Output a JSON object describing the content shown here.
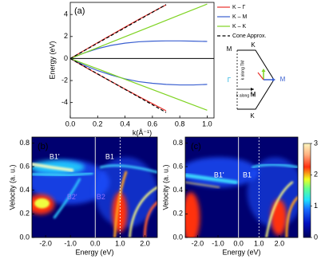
{
  "chart_data": [
    {
      "type": "line",
      "panel": "(a)",
      "x_label": "k(Å⁻¹)",
      "y_label": "Energy (eV)",
      "xlim": [
        0,
        1.05
      ],
      "ylim": [
        -5.4,
        5.1
      ],
      "xticks": [
        {
          "value": 0,
          "label": "0.0"
        },
        {
          "value": 0.2,
          "label": "0.2"
        },
        {
          "value": 0.4,
          "label": "0.4"
        },
        {
          "value": 0.6,
          "label": "0.6"
        },
        {
          "value": 0.8,
          "label": "0.8"
        },
        {
          "value": 1,
          "label": "1.0"
        }
      ],
      "yticks": [
        -4,
        -2,
        0,
        2,
        4
      ],
      "series": [
        {
          "name": "K – Γ",
          "color": "#e8302a",
          "dash": false,
          "x": [
            0,
            0.1,
            0.2,
            0.3,
            0.4,
            0.5,
            0.6,
            0.7
          ],
          "upper": [
            0,
            0.72,
            1.44,
            2.15,
            2.85,
            3.55,
            4.22,
            4.88
          ],
          "lower": [
            0,
            -0.72,
            -1.42,
            -2.1,
            -2.78,
            -3.45,
            -4.1,
            -4.75
          ]
        },
        {
          "name": "K – M",
          "color": "#3a5fd0",
          "dash": false,
          "x": [
            0,
            0.1,
            0.2,
            0.3,
            0.4,
            0.5,
            0.6,
            0.7,
            0.8,
            0.9,
            1
          ],
          "upper": [
            0,
            0.5,
            0.9,
            1.2,
            1.4,
            1.52,
            1.58,
            1.6,
            1.6,
            1.58,
            1.55
          ],
          "lower": [
            0,
            -0.6,
            -1.1,
            -1.5,
            -1.85,
            -2.1,
            -2.25,
            -2.35,
            -2.4,
            -2.4,
            -2.35
          ]
        },
        {
          "name": "K – K",
          "color": "#7ed321",
          "dash": false,
          "x": [
            0,
            0.2,
            0.4,
            0.6,
            0.8,
            1
          ],
          "upper": [
            0,
            0.99,
            1.98,
            2.97,
            3.96,
            4.95
          ],
          "lower": [
            0,
            -0.94,
            -1.88,
            -2.82,
            -3.76,
            -4.7
          ]
        },
        {
          "name": "Cone Approx.",
          "color": "#000000",
          "dash": true,
          "x": [
            0,
            0.7
          ],
          "upper": [
            0,
            4.9
          ],
          "lower": [
            0,
            -4.9
          ]
        }
      ],
      "diagram_labels": [
        "M",
        "K",
        "Γ",
        "M",
        "M",
        "K",
        "k along TM",
        "k along TK"
      ]
    },
    {
      "type": "heatmap",
      "panel": "(b)",
      "x_label": "Energy (eV)",
      "y_label": "Velocity (a. u.)",
      "xlim": [
        -2.55,
        2.5
      ],
      "ylim": [
        0,
        0.85
      ],
      "xticks": [
        {
          "value": -2,
          "label": "-2.0"
        },
        {
          "value": -1,
          "label": "-1.0"
        },
        {
          "value": 0,
          "label": "0.0"
        },
        {
          "value": 1,
          "label": "1.0"
        },
        {
          "value": 2,
          "label": "2.0"
        }
      ],
      "yticks": [
        {
          "value": 0,
          "label": "0.0"
        },
        {
          "value": 0.2,
          "label": "0.2"
        },
        {
          "value": 0.4,
          "label": "0.4"
        },
        {
          "value": 0.6,
          "label": "0.6"
        },
        {
          "value": 0.8,
          "label": "0.8"
        }
      ],
      "annotations": [
        "B1'",
        "B1",
        "B2'",
        "B2"
      ]
    },
    {
      "type": "heatmap",
      "panel": "(c)",
      "x_label": "Energy (eV)",
      "y_label": "Velocity (a. u.)",
      "xlim": [
        -2.6,
        2.9
      ],
      "ylim": [
        0,
        0.85
      ],
      "xticks": [
        {
          "value": -2,
          "label": "-2.0"
        },
        {
          "value": -1,
          "label": "-1.0"
        },
        {
          "value": 0,
          "label": "0.0"
        },
        {
          "value": 1,
          "label": "1.0"
        },
        {
          "value": 2,
          "label": "2.0"
        }
      ],
      "yticks": [
        {
          "value": 0,
          "label": "0.0"
        },
        {
          "value": 0.2,
          "label": "0.2"
        },
        {
          "value": 0.4,
          "label": "0.4"
        },
        {
          "value": 0.6,
          "label": "0.6"
        },
        {
          "value": 0.8,
          "label": "0.8"
        }
      ],
      "annotations": [
        "B1'",
        "B1"
      ],
      "colorbar": {
        "lim": [
          0,
          3
        ],
        "ticks": [
          0,
          1,
          2,
          3
        ]
      }
    }
  ]
}
